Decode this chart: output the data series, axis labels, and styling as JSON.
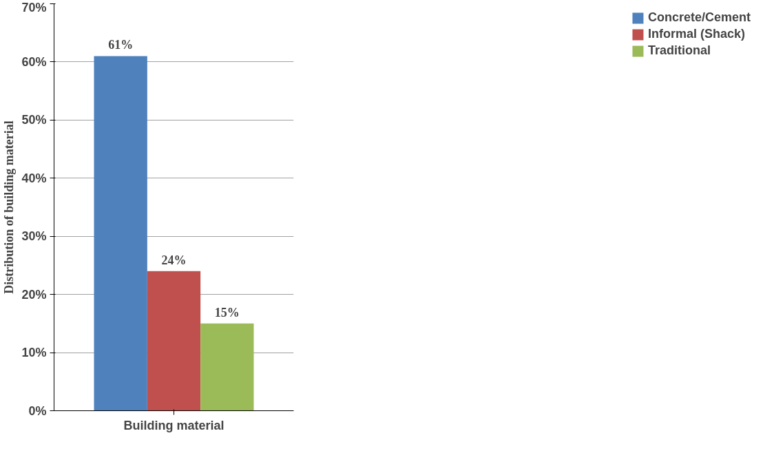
{
  "chart_data": {
    "type": "bar",
    "xlabel": "Building material",
    "ylabel": "Distribution of building material",
    "categories": [
      null
    ],
    "series": [
      {
        "name": "Concrete/Cement",
        "color": "#4f81bd",
        "values": [
          61
        ],
        "value_labels": [
          "61%"
        ]
      },
      {
        "name": "Informal (Shack)",
        "color": "#c0504d",
        "values": [
          24
        ],
        "value_labels": [
          "24%"
        ]
      },
      {
        "name": "Traditional",
        "color": "#9bbb59",
        "values": [
          15
        ],
        "value_labels": [
          "15%"
        ]
      }
    ],
    "ylim": [
      0,
      70
    ],
    "yticks": [
      {
        "value": 0,
        "label": "0%"
      },
      {
        "value": 10,
        "label": "10%"
      },
      {
        "value": 20,
        "label": "20%"
      },
      {
        "value": 30,
        "label": "30%"
      },
      {
        "value": 40,
        "label": "40%"
      },
      {
        "value": 50,
        "label": "50%"
      },
      {
        "value": 60,
        "label": "60%"
      },
      {
        "value": 70,
        "label": "70%"
      }
    ],
    "grid": "y",
    "legend": "right",
    "tick_labels": "y"
  }
}
